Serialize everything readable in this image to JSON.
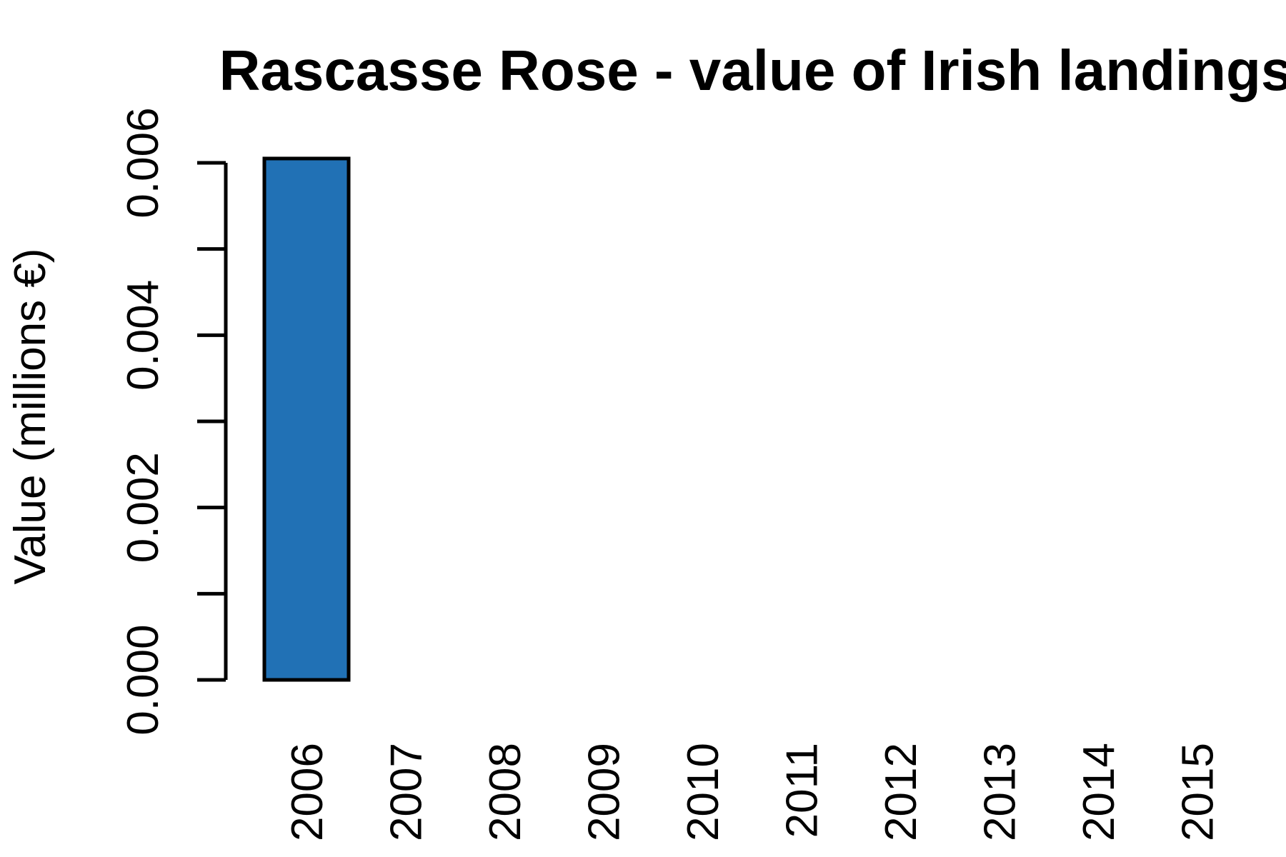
{
  "chart_data": {
    "type": "bar",
    "title": "Rascasse Rose - value of Irish landings",
    "xlabel": "",
    "ylabel": "Value (millions €)",
    "categories": [
      "2006",
      "2007",
      "2008",
      "2009",
      "2010",
      "2011",
      "2012",
      "2013",
      "2014",
      "2015"
    ],
    "values": [
      0.00605,
      0,
      0,
      0,
      0,
      0,
      0,
      0,
      0,
      0
    ],
    "ylim": [
      0,
      0.006
    ],
    "yticks": [
      0.0,
      0.001,
      0.002,
      0.003,
      0.004,
      0.005,
      0.006
    ],
    "ytick_labels": [
      "0.000",
      "",
      "0.002",
      "",
      "0.004",
      "",
      "0.006"
    ],
    "bar_color": "#2171b5",
    "grid": false,
    "legend": "none"
  }
}
